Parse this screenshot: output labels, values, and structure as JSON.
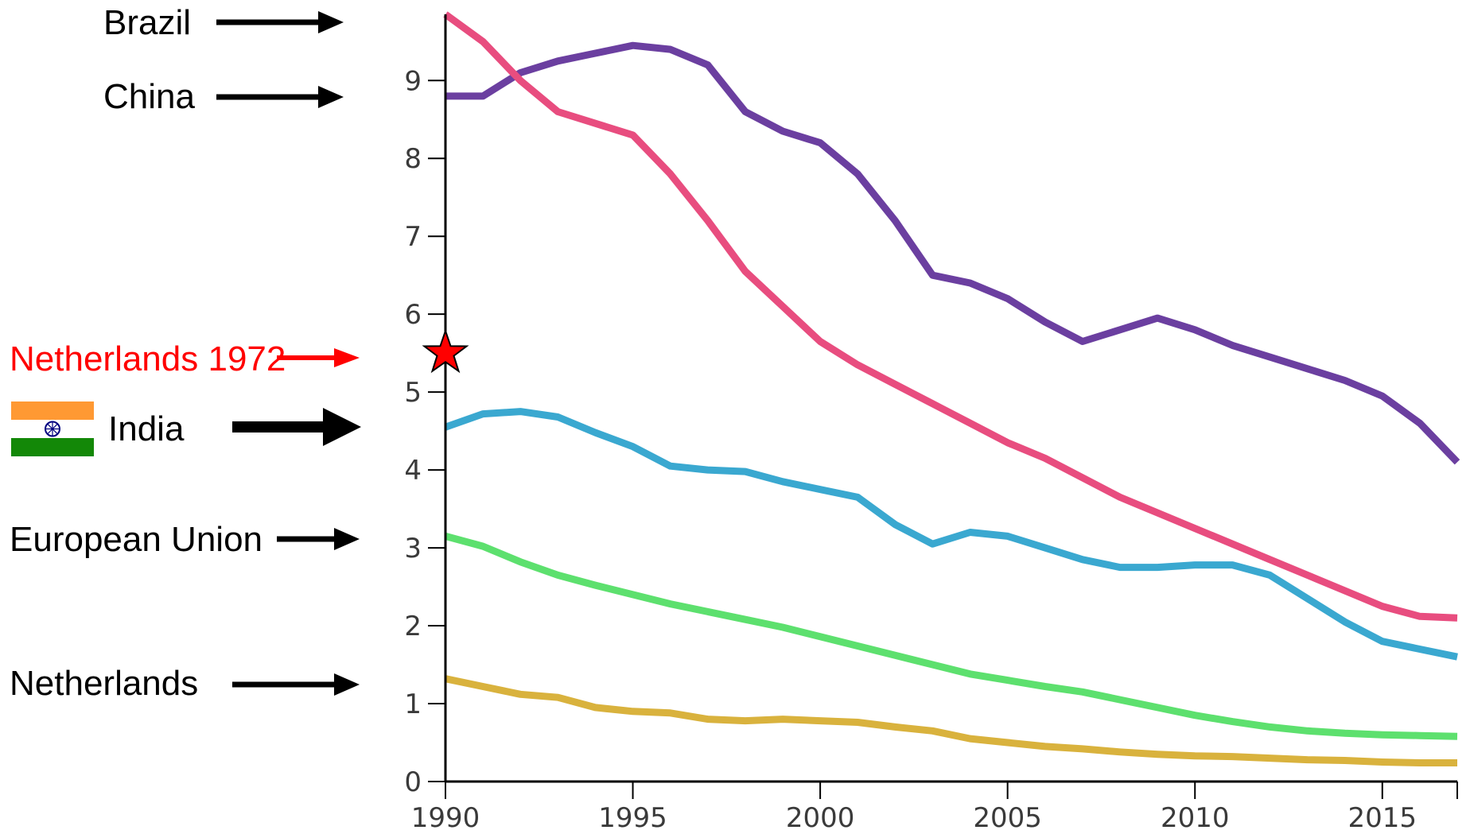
{
  "colors": {
    "axis": "#000000",
    "arrow": "#000000",
    "highlight": "#ff0000",
    "flag_saffron": "#FF9933",
    "flag_white": "#FFFFFF",
    "flag_green": "#138808",
    "flag_chakra": "#000080"
  },
  "annotations": {
    "brazil": "Brazil",
    "china": "China",
    "netherlands_1972": "Netherlands 1972",
    "india": "India",
    "european_union": "European Union",
    "netherlands": "Netherlands"
  },
  "chart_data": {
    "type": "line",
    "title": "",
    "xlabel": "",
    "ylabel": "",
    "xlim": [
      1990,
      2017
    ],
    "ylim": [
      0,
      9.85
    ],
    "grid": false,
    "x_ticks": [
      1990,
      1995,
      2000,
      2005,
      2010,
      2015
    ],
    "y_ticks": [
      0,
      1,
      2,
      3,
      4,
      5,
      6,
      7,
      8,
      9
    ],
    "x": [
      1990,
      1991,
      1992,
      1993,
      1994,
      1995,
      1996,
      1997,
      1998,
      1999,
      2000,
      2001,
      2002,
      2003,
      2004,
      2005,
      2006,
      2007,
      2008,
      2009,
      2010,
      2011,
      2012,
      2013,
      2014,
      2015,
      2016,
      2017
    ],
    "series": [
      {
        "color": "#6b3fa0",
        "values": [
          8.8,
          8.8,
          9.1,
          9.25,
          9.35,
          9.45,
          9.4,
          9.2,
          8.6,
          8.35,
          8.2,
          7.8,
          7.2,
          6.5,
          6.4,
          6.2,
          5.9,
          5.65,
          5.8,
          5.95,
          5.8,
          5.6,
          5.45,
          5.3,
          5.15,
          4.95,
          4.6,
          4.1
        ]
      },
      {
        "color": "#e84d7f",
        "values": [
          9.85,
          9.5,
          9.0,
          8.6,
          8.45,
          8.3,
          7.8,
          7.2,
          6.55,
          6.1,
          5.65,
          5.35,
          5.1,
          4.85,
          4.6,
          4.35,
          4.15,
          3.9,
          3.65,
          3.45,
          3.25,
          3.05,
          2.85,
          2.65,
          2.45,
          2.25,
          2.12,
          2.1
        ]
      },
      {
        "color": "#3aa8d0",
        "values": [
          4.55,
          4.72,
          4.75,
          4.68,
          4.48,
          4.3,
          4.05,
          4.0,
          3.98,
          3.85,
          3.75,
          3.65,
          3.3,
          3.05,
          3.2,
          3.15,
          3.0,
          2.85,
          2.75,
          2.75,
          2.78,
          2.78,
          2.65,
          2.35,
          2.05,
          1.8,
          1.7,
          1.6
        ]
      },
      {
        "color": "#5de06e",
        "values": [
          3.15,
          3.02,
          2.82,
          2.65,
          2.52,
          2.4,
          2.28,
          2.18,
          2.08,
          1.98,
          1.86,
          1.74,
          1.62,
          1.5,
          1.38,
          1.3,
          1.22,
          1.15,
          1.05,
          0.95,
          0.85,
          0.77,
          0.7,
          0.65,
          0.62,
          0.6,
          0.59,
          0.58
        ]
      },
      {
        "color": "#d9b23d",
        "values": [
          1.32,
          1.22,
          1.12,
          1.08,
          0.95,
          0.9,
          0.88,
          0.8,
          0.78,
          0.8,
          0.78,
          0.76,
          0.7,
          0.65,
          0.55,
          0.5,
          0.45,
          0.42,
          0.38,
          0.35,
          0.33,
          0.32,
          0.3,
          0.28,
          0.27,
          0.25,
          0.24,
          0.24
        ]
      }
    ],
    "marker": {
      "x": 1990,
      "y": 5.5,
      "shape": "star",
      "color": "#ff0000"
    }
  }
}
